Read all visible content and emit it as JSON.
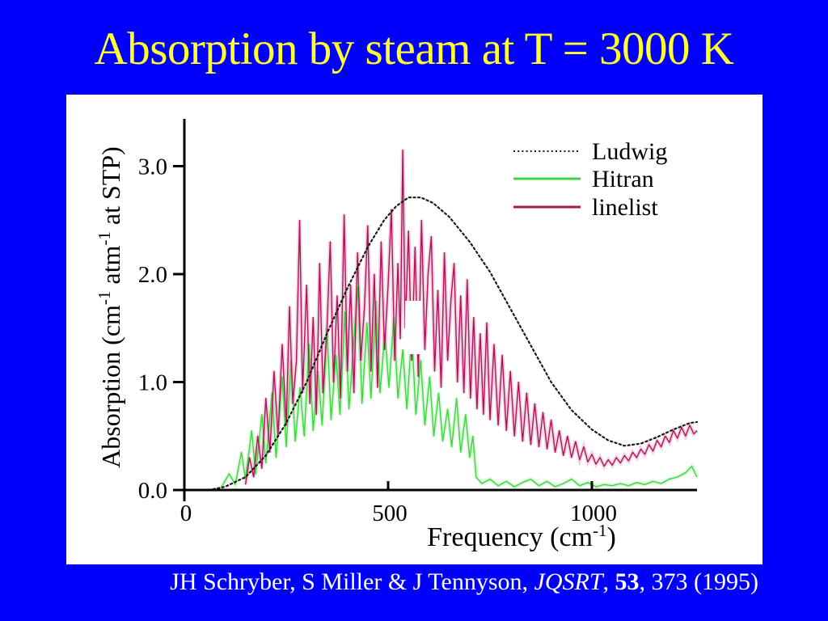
{
  "slide": {
    "title": "Absorption by steam at T = 3000 K",
    "citation_parts": [
      {
        "text": "JH Schryber, S Miller & J Tennyson, "
      },
      {
        "text": "JQSRT",
        "italic": true
      },
      {
        "text": ", "
      },
      {
        "text": "53",
        "bold": true
      },
      {
        "text": ", 373 (1995)"
      }
    ],
    "colors": {
      "background": "#0101fb",
      "title_text": "#ffff2e",
      "panel": "#ffffff",
      "citation_text": "#ffffff"
    }
  },
  "chart_data": {
    "type": "line",
    "title": "",
    "xlabel_parts": [
      {
        "text": "Frequency (cm"
      },
      {
        "text": "-1",
        "sup": true
      },
      {
        "text": ")"
      }
    ],
    "ylabel_parts": [
      {
        "text": "Absorption (cm"
      },
      {
        "text": "-1",
        "sup": true
      },
      {
        "text": " atm"
      },
      {
        "text": "-1",
        "sup": true
      },
      {
        "text": " at STP)"
      }
    ],
    "xlim": [
      0,
      1260
    ],
    "ylim": [
      0,
      3.43
    ],
    "grid": false,
    "x_ticks": [
      {
        "value": 0,
        "label": "0"
      },
      {
        "value": 500,
        "label": "500"
      },
      {
        "value": 1000,
        "label": "1000"
      }
    ],
    "y_ticks": [
      {
        "value": 0,
        "label": "0.0"
      },
      {
        "value": 1,
        "label": "1.0"
      },
      {
        "value": 2,
        "label": "2.0"
      },
      {
        "value": 3,
        "label": "3.0"
      }
    ],
    "legend": {
      "position": "top-right",
      "entries": [
        {
          "name": "Ludwig",
          "color": "#1a1a1a",
          "style": "dotted"
        },
        {
          "name": "Hitran",
          "color": "#3cd63c",
          "style": "solid"
        },
        {
          "name": "linelist",
          "color": "#b0135a",
          "style": "solid"
        }
      ]
    },
    "series": [
      {
        "name": "Hitran",
        "color": "#3cd63c",
        "style": "solid",
        "points": [
          [
            90,
            0.02
          ],
          [
            110,
            0.15
          ],
          [
            125,
            0.05
          ],
          [
            140,
            0.35
          ],
          [
            150,
            0.1
          ],
          [
            165,
            0.55
          ],
          [
            175,
            0.15
          ],
          [
            190,
            0.7
          ],
          [
            200,
            0.25
          ],
          [
            215,
            0.9
          ],
          [
            225,
            0.3
          ],
          [
            240,
            1.05
          ],
          [
            250,
            0.4
          ],
          [
            262,
            1.2
          ],
          [
            272,
            0.45
          ],
          [
            284,
            0.95
          ],
          [
            294,
            0.5
          ],
          [
            306,
            1.35
          ],
          [
            316,
            0.55
          ],
          [
            328,
            1.1
          ],
          [
            338,
            0.6
          ],
          [
            350,
            1.5
          ],
          [
            360,
            0.65
          ],
          [
            372,
            1.25
          ],
          [
            382,
            0.7
          ],
          [
            394,
            1.65
          ],
          [
            404,
            0.75
          ],
          [
            416,
            1.4
          ],
          [
            426,
            1.88
          ],
          [
            436,
            0.8
          ],
          [
            448,
            1.55
          ],
          [
            458,
            0.85
          ],
          [
            470,
            1.75
          ],
          [
            480,
            0.9
          ],
          [
            492,
            1.45
          ],
          [
            502,
            0.95
          ],
          [
            514,
            1.6
          ],
          [
            524,
            0.85
          ],
          [
            536,
            1.3
          ],
          [
            546,
            0.75
          ],
          [
            558,
            1.45
          ],
          [
            568,
            0.7
          ],
          [
            580,
            1.2
          ],
          [
            590,
            0.6
          ],
          [
            602,
            1.05
          ],
          [
            612,
            0.5
          ],
          [
            624,
            0.9
          ],
          [
            634,
            0.45
          ],
          [
            646,
            0.75
          ],
          [
            656,
            0.4
          ],
          [
            668,
            0.85
          ],
          [
            678,
            0.35
          ],
          [
            690,
            0.7
          ],
          [
            700,
            0.3
          ],
          [
            708,
            0.5
          ],
          [
            716,
            0.12
          ],
          [
            730,
            0.06
          ],
          [
            750,
            0.1
          ],
          [
            770,
            0.04
          ],
          [
            790,
            0.08
          ],
          [
            810,
            0.03
          ],
          [
            830,
            0.07
          ],
          [
            850,
            0.1
          ],
          [
            870,
            0.04
          ],
          [
            890,
            0.08
          ],
          [
            910,
            0.03
          ],
          [
            930,
            0.06
          ],
          [
            950,
            0.1
          ],
          [
            970,
            0.04
          ],
          [
            990,
            0.07
          ],
          [
            1010,
            0.03
          ],
          [
            1030,
            0.05
          ],
          [
            1050,
            0.04
          ],
          [
            1070,
            0.06
          ],
          [
            1090,
            0.04
          ],
          [
            1110,
            0.07
          ],
          [
            1130,
            0.05
          ],
          [
            1150,
            0.08
          ],
          [
            1170,
            0.06
          ],
          [
            1190,
            0.1
          ],
          [
            1210,
            0.12
          ],
          [
            1230,
            0.16
          ],
          [
            1245,
            0.22
          ],
          [
            1258,
            0.12
          ]
        ]
      },
      {
        "name": "linelist",
        "color": "#b0135a",
        "style": "solid",
        "points": [
          [
            150,
            0.05
          ],
          [
            160,
            0.3
          ],
          [
            170,
            0.12
          ],
          [
            180,
            0.5
          ],
          [
            190,
            0.2
          ],
          [
            200,
            0.85
          ],
          [
            210,
            0.35
          ],
          [
            220,
            1.1
          ],
          [
            230,
            0.5
          ],
          [
            240,
            1.35
          ],
          [
            250,
            0.6
          ],
          [
            258,
            1.7
          ],
          [
            266,
            0.8
          ],
          [
            275,
            1.2
          ],
          [
            283,
            2.5
          ],
          [
            290,
            0.9
          ],
          [
            300,
            1.9
          ],
          [
            308,
            0.8
          ],
          [
            316,
            1.6
          ],
          [
            324,
            0.7
          ],
          [
            332,
            2.1
          ],
          [
            340,
            0.9
          ],
          [
            350,
            1.5
          ],
          [
            358,
            2.3
          ],
          [
            366,
            1.0
          ],
          [
            375,
            1.8
          ],
          [
            383,
            0.85
          ],
          [
            392,
            2.55
          ],
          [
            400,
            1.1
          ],
          [
            408,
            1.9
          ],
          [
            416,
            0.9
          ],
          [
            425,
            2.2
          ],
          [
            433,
            1.2
          ],
          [
            442,
            1.7
          ],
          [
            450,
            2.45
          ],
          [
            458,
            1.1
          ],
          [
            466,
            2.0
          ],
          [
            474,
            0.95
          ],
          [
            483,
            2.3
          ],
          [
            491,
            1.3
          ],
          [
            500,
            1.9
          ],
          [
            508,
            2.6
          ],
          [
            516,
            1.2
          ],
          [
            524,
            2.1
          ],
          [
            530,
            1.4
          ],
          [
            536,
            3.15
          ],
          [
            542,
            1.5
          ],
          [
            550,
            2.4
          ],
          [
            558,
            1.2
          ],
          [
            566,
            2.25
          ],
          [
            574,
            1.05
          ],
          [
            582,
            2.5
          ],
          [
            590,
            1.3
          ],
          [
            598,
            2.0
          ],
          [
            606,
            2.35
          ],
          [
            614,
            1.1
          ],
          [
            622,
            1.85
          ],
          [
            630,
            0.95
          ],
          [
            638,
            2.2
          ],
          [
            646,
            1.2
          ],
          [
            654,
            1.75
          ],
          [
            662,
            2.1
          ],
          [
            670,
            1.0
          ],
          [
            678,
            1.8
          ],
          [
            686,
            0.9
          ],
          [
            694,
            1.95
          ],
          [
            702,
            0.85
          ],
          [
            710,
            1.6
          ],
          [
            718,
            0.75
          ],
          [
            726,
            1.45
          ],
          [
            734,
            0.7
          ],
          [
            742,
            1.55
          ],
          [
            750,
            0.65
          ],
          [
            760,
            1.35
          ],
          [
            770,
            0.6
          ],
          [
            780,
            1.25
          ],
          [
            790,
            0.55
          ],
          [
            800,
            1.1
          ],
          [
            810,
            0.5
          ],
          [
            820,
            1.0
          ],
          [
            830,
            0.45
          ],
          [
            840,
            0.9
          ],
          [
            850,
            0.42
          ],
          [
            860,
            0.8
          ],
          [
            870,
            0.4
          ],
          [
            880,
            0.72
          ],
          [
            890,
            0.38
          ],
          [
            900,
            0.65
          ],
          [
            910,
            0.35
          ],
          [
            920,
            0.55
          ],
          [
            930,
            0.32
          ],
          [
            940,
            0.5
          ],
          [
            950,
            0.3
          ],
          [
            960,
            0.45
          ],
          [
            970,
            0.28
          ],
          [
            980,
            0.4
          ],
          [
            990,
            0.26
          ],
          [
            1000,
            0.33
          ],
          [
            1010,
            0.24
          ],
          [
            1020,
            0.3
          ],
          [
            1030,
            0.22
          ],
          [
            1040,
            0.28
          ],
          [
            1050,
            0.23
          ],
          [
            1060,
            0.3
          ],
          [
            1070,
            0.25
          ],
          [
            1080,
            0.32
          ],
          [
            1090,
            0.27
          ],
          [
            1100,
            0.35
          ],
          [
            1110,
            0.3
          ],
          [
            1120,
            0.38
          ],
          [
            1130,
            0.33
          ],
          [
            1140,
            0.42
          ],
          [
            1150,
            0.36
          ],
          [
            1160,
            0.46
          ],
          [
            1170,
            0.4
          ],
          [
            1180,
            0.5
          ],
          [
            1190,
            0.44
          ],
          [
            1200,
            0.55
          ],
          [
            1210,
            0.48
          ],
          [
            1220,
            0.58
          ],
          [
            1230,
            0.5
          ],
          [
            1240,
            0.6
          ],
          [
            1250,
            0.52
          ],
          [
            1258,
            0.55
          ]
        ]
      },
      {
        "name": "Ludwig",
        "color": "#1a1a1a",
        "style": "dotted",
        "points": [
          [
            60,
            0
          ],
          [
            100,
            0.03
          ],
          [
            150,
            0.12
          ],
          [
            200,
            0.32
          ],
          [
            250,
            0.62
          ],
          [
            300,
            1.0
          ],
          [
            350,
            1.45
          ],
          [
            400,
            1.87
          ],
          [
            450,
            2.25
          ],
          [
            490,
            2.5
          ],
          [
            520,
            2.63
          ],
          [
            550,
            2.71
          ],
          [
            580,
            2.71
          ],
          [
            610,
            2.66
          ],
          [
            650,
            2.53
          ],
          [
            700,
            2.3
          ],
          [
            750,
            2.02
          ],
          [
            800,
            1.68
          ],
          [
            850,
            1.34
          ],
          [
            900,
            1.0
          ],
          [
            950,
            0.74
          ],
          [
            1000,
            0.56
          ],
          [
            1040,
            0.46
          ],
          [
            1080,
            0.41
          ],
          [
            1120,
            0.43
          ],
          [
            1160,
            0.49
          ],
          [
            1200,
            0.56
          ],
          [
            1240,
            0.62
          ],
          [
            1258,
            0.63
          ]
        ]
      }
    ]
  }
}
